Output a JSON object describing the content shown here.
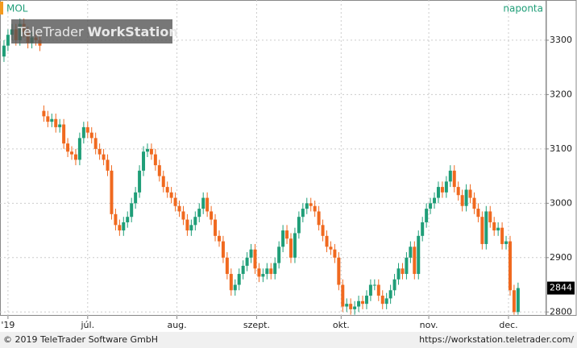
{
  "chart_data": {
    "type": "candlestick",
    "symbol": "MOL",
    "interval": "naponta",
    "watermark": [
      "TeleTrader",
      "WorkStation"
    ],
    "footer_left": "© 2019 TeleTrader Software GmbH",
    "footer_right": "https://workstation.teletrader.com/",
    "up_color": "#1f9e78",
    "down_color": "#f0691f",
    "open": [
      3270,
      3290,
      3310,
      3320,
      3300,
      3330,
      3315,
      3295,
      3305,
      3300,
      3170,
      3160,
      3150,
      3155,
      3140,
      3145,
      3110,
      3095,
      3090,
      3080,
      3120,
      3140,
      3130,
      3120,
      3100,
      3090,
      3080,
      3060,
      2980,
      2960,
      2950,
      2965,
      2975,
      3000,
      3020,
      3060,
      3095,
      3100,
      3090,
      3070,
      3050,
      3030,
      3020,
      3010,
      2995,
      2985,
      2970,
      2950,
      2960,
      2975,
      2990,
      3010,
      2985,
      2970,
      2940,
      2930,
      2900,
      2870,
      2840,
      2850,
      2870,
      2885,
      2900,
      2915,
      2880,
      2865,
      2870,
      2880,
      2870,
      2890,
      2920,
      2950,
      2935,
      2900,
      2945,
      2975,
      2990,
      3000,
      2995,
      2985,
      2960,
      2940,
      2920,
      2915,
      2900,
      2850,
      2810,
      2815,
      2805,
      2810,
      2820,
      2815,
      2830,
      2850,
      2850,
      2830,
      2815,
      2825,
      2840,
      2860,
      2880,
      2870,
      2900,
      2920,
      2870,
      2940,
      2965,
      2990,
      3000,
      3010,
      3030,
      3020,
      3040,
      3060,
      3030,
      3015,
      2995,
      3025,
      3010,
      2990,
      2975,
      2925,
      2985,
      2965,
      2950,
      2955,
      2925,
      2930,
      2840,
      2800
    ],
    "high": [
      3300,
      3320,
      3330,
      3330,
      3340,
      3340,
      3325,
      3315,
      3315,
      3310,
      3180,
      3170,
      3165,
      3165,
      3155,
      3155,
      3120,
      3105,
      3100,
      3130,
      3150,
      3150,
      3140,
      3130,
      3110,
      3100,
      3090,
      3070,
      2990,
      2970,
      2975,
      2985,
      3010,
      3030,
      3070,
      3105,
      3110,
      3110,
      3100,
      3080,
      3060,
      3040,
      3030,
      3020,
      3005,
      2995,
      2980,
      2970,
      2985,
      3000,
      3020,
      3020,
      2995,
      2980,
      2950,
      2940,
      2910,
      2880,
      2860,
      2880,
      2895,
      2910,
      2925,
      2925,
      2890,
      2880,
      2890,
      2890,
      2900,
      2930,
      2960,
      2960,
      2945,
      2955,
      2985,
      3000,
      3010,
      3010,
      3005,
      2995,
      2970,
      2950,
      2930,
      2925,
      2910,
      2860,
      2825,
      2825,
      2820,
      2830,
      2830,
      2840,
      2860,
      2860,
      2860,
      2840,
      2835,
      2850,
      2870,
      2890,
      2890,
      2910,
      2930,
      2930,
      2950,
      2975,
      3000,
      3010,
      3020,
      3040,
      3040,
      3050,
      3070,
      3070,
      3040,
      3025,
      3035,
      3035,
      3020,
      3000,
      2985,
      2995,
      2995,
      2975,
      2965,
      2965,
      2940,
      2940,
      2850,
      2854
    ],
    "low": [
      3260,
      3280,
      3300,
      3290,
      3290,
      3305,
      3285,
      3285,
      3290,
      3280,
      3150,
      3140,
      3140,
      3130,
      3130,
      3100,
      3085,
      3080,
      3070,
      3070,
      3110,
      3120,
      3110,
      3090,
      3080,
      3070,
      3050,
      2970,
      2950,
      2940,
      2940,
      2955,
      2965,
      2990,
      3010,
      3050,
      3085,
      3080,
      3060,
      3040,
      3020,
      3010,
      3000,
      2985,
      2975,
      2960,
      2940,
      2940,
      2950,
      2965,
      2980,
      2975,
      2960,
      2930,
      2920,
      2890,
      2860,
      2830,
      2830,
      2840,
      2860,
      2875,
      2890,
      2870,
      2855,
      2855,
      2860,
      2860,
      2860,
      2880,
      2910,
      2925,
      2890,
      2890,
      2935,
      2965,
      2980,
      2985,
      2975,
      2950,
      2930,
      2910,
      2905,
      2890,
      2840,
      2800,
      2800,
      2795,
      2795,
      2800,
      2805,
      2805,
      2820,
      2840,
      2820,
      2805,
      2805,
      2815,
      2830,
      2850,
      2860,
      2860,
      2890,
      2860,
      2860,
      2930,
      2955,
      2980,
      2990,
      3000,
      3010,
      3010,
      3030,
      3020,
      3005,
      2985,
      2985,
      3000,
      2980,
      2965,
      2915,
      2915,
      2955,
      2940,
      2940,
      2915,
      2915,
      2830,
      2795,
      2795
    ],
    "close": [
      3290,
      3310,
      3320,
      3300,
      3330,
      3315,
      3295,
      3305,
      3300,
      3290,
      3160,
      3150,
      3155,
      3140,
      3145,
      3110,
      3095,
      3090,
      3080,
      3120,
      3140,
      3130,
      3120,
      3100,
      3090,
      3080,
      3060,
      2980,
      2960,
      2950,
      2965,
      2975,
      3000,
      3020,
      3060,
      3095,
      3100,
      3090,
      3070,
      3050,
      3030,
      3020,
      3010,
      2995,
      2985,
      2970,
      2950,
      2960,
      2975,
      2990,
      3010,
      2985,
      2970,
      2940,
      2930,
      2900,
      2870,
      2840,
      2850,
      2870,
      2885,
      2900,
      2915,
      2880,
      2865,
      2870,
      2880,
      2870,
      2890,
      2920,
      2950,
      2935,
      2900,
      2945,
      2975,
      2990,
      3000,
      2995,
      2985,
      2960,
      2940,
      2920,
      2915,
      2900,
      2850,
      2810,
      2815,
      2805,
      2810,
      2820,
      2815,
      2830,
      2850,
      2850,
      2830,
      2815,
      2825,
      2840,
      2860,
      2880,
      2870,
      2900,
      2920,
      2870,
      2940,
      2965,
      2990,
      3000,
      3010,
      3030,
      3020,
      3040,
      3060,
      3030,
      3015,
      2995,
      3025,
      3010,
      2990,
      2975,
      2925,
      2985,
      2965,
      2950,
      2955,
      2925,
      2930,
      2840,
      2800,
      2844
    ],
    "xlim": [
      -1,
      135.9
    ],
    "xticks": [
      {
        "value": 1,
        "label": "'19"
      },
      {
        "value": 21,
        "label": "júl."
      },
      {
        "value": 43.4,
        "label": "aug."
      },
      {
        "value": 63.4,
        "label": "szept."
      },
      {
        "value": 84.6,
        "label": "okt."
      },
      {
        "value": 106.6,
        "label": "nov."
      },
      {
        "value": 126.6,
        "label": "dec."
      }
    ],
    "ylim": [
      2793,
      3374
    ],
    "yticks": [
      2800,
      2900,
      3000,
      3100,
      3200,
      3300
    ],
    "grid": true
  }
}
